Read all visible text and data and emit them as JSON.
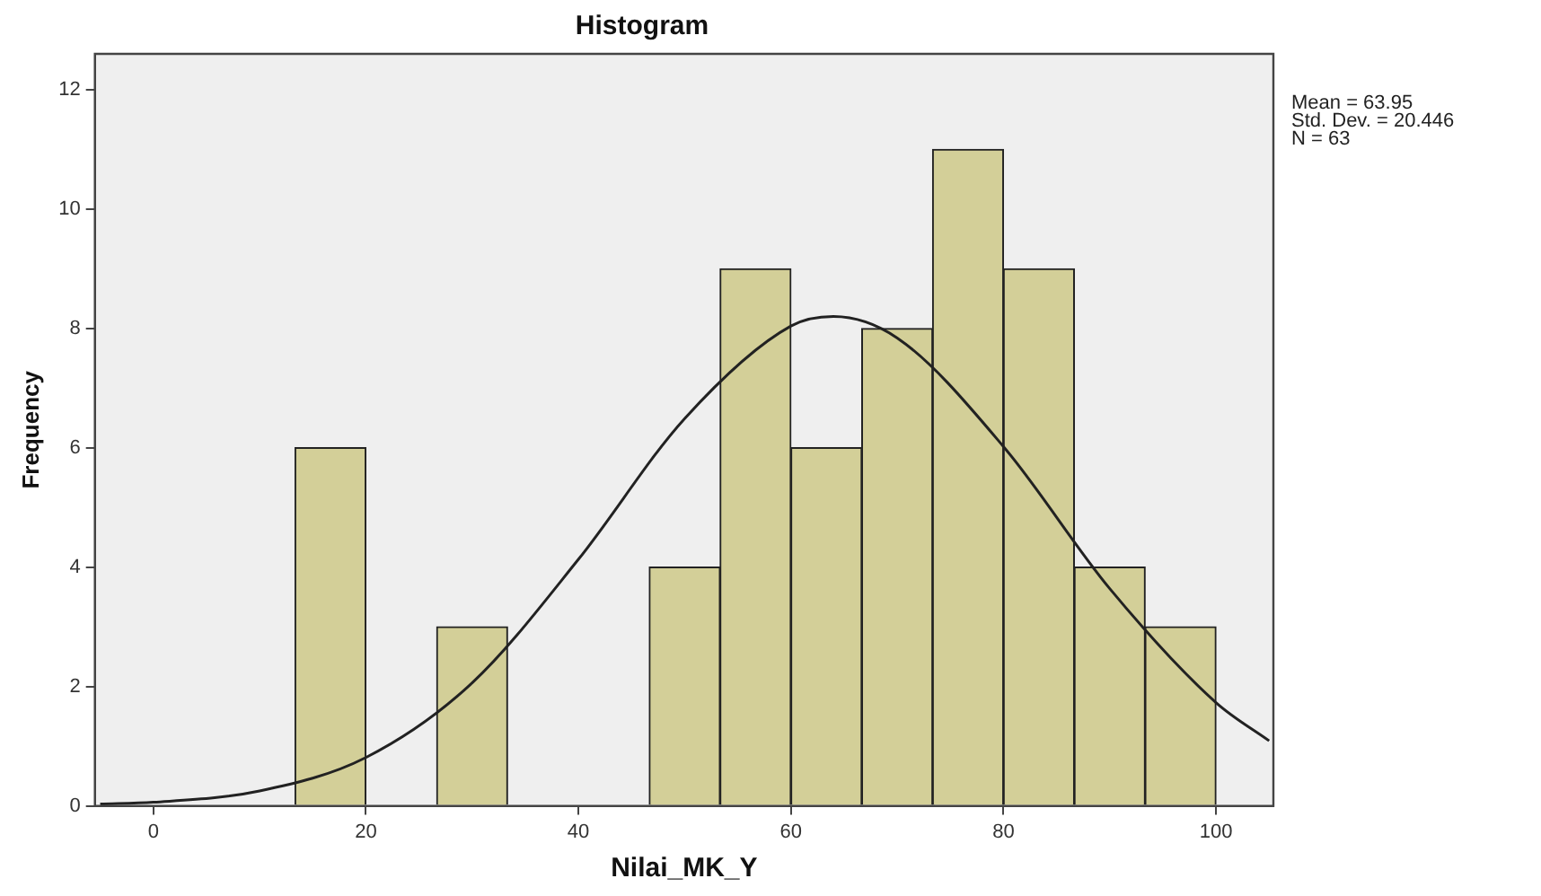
{
  "chart_data": {
    "type": "histogram",
    "title": "Histogram",
    "xlabel": "Nilai_MK_Y",
    "ylabel": "Frequency",
    "bins": [
      13.33,
      20,
      26.67,
      33.33,
      40,
      46.67,
      53.33,
      60,
      66.67,
      73.33,
      80,
      86.67,
      93.33,
      100
    ],
    "values": [
      6,
      0,
      3,
      0,
      0,
      4,
      9,
      6,
      8,
      11,
      9,
      4,
      3
    ],
    "color": "#d3cf98",
    "series": [
      {
        "type": "line",
        "color": "#222222",
        "x": [
          -5,
          0,
          10,
          20,
          30,
          40,
          50,
          60,
          64,
          70,
          80,
          90,
          100,
          105
        ],
        "values": [
          0.03,
          0.06,
          0.25,
          0.81,
          2.06,
          4.13,
          6.49,
          8.04,
          8.2,
          7.84,
          6.02,
          3.64,
          1.73,
          1.09
        ]
      }
    ],
    "xlim": [
      -5.5,
      105.4
    ],
    "xticks": [
      0,
      20,
      40,
      60,
      80,
      100
    ],
    "ylim": [
      0,
      12.6
    ],
    "yticks": [
      0,
      2,
      4,
      6,
      8,
      10,
      12
    ],
    "grid": false,
    "legend": false,
    "annotations": [
      "Mean = 63.95",
      "Std. Dev. = 20.446",
      "N = 63"
    ]
  }
}
